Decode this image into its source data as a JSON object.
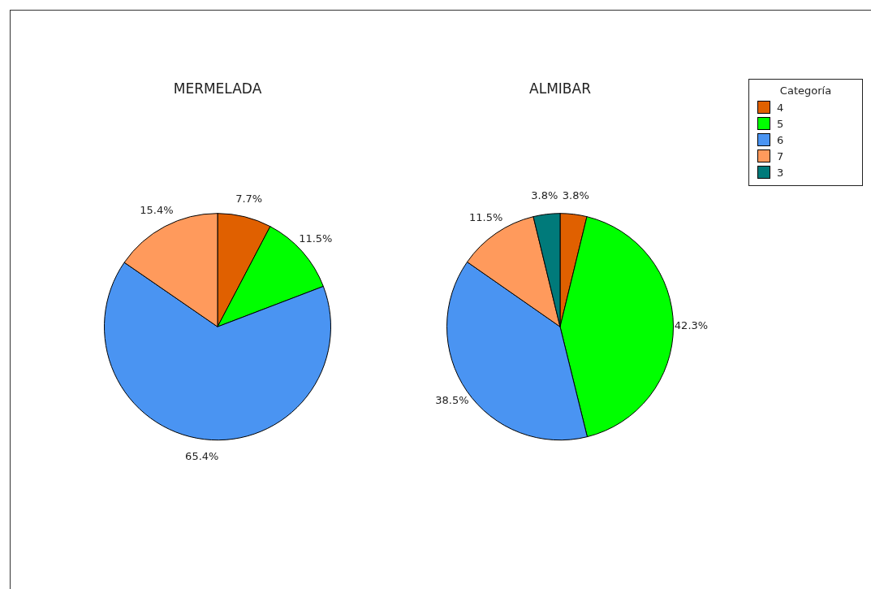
{
  "chart_data": [
    {
      "type": "pie",
      "title": "MERMELADA",
      "categories": [
        null,
        null,
        null,
        null
      ],
      "values": [
        7.7,
        11.5,
        65.4,
        15.4
      ],
      "colors": [
        "#e06000",
        "#00ff00",
        "#4a94f2",
        "#ff9a5c"
      ],
      "value_labels": [
        "7.7%",
        "11.5%",
        "65.4%",
        "15.4%"
      ],
      "legend": false
    },
    {
      "type": "pie",
      "title": "ALMIBAR",
      "categories": [
        "4",
        "5",
        "6",
        "7",
        "3"
      ],
      "values": [
        3.8,
        42.3,
        38.5,
        11.5,
        3.8
      ],
      "colors": [
        "#e06000",
        "#00ff00",
        "#4a94f2",
        "#ff9a5c",
        "#007a7a"
      ],
      "value_labels": [
        "3.8%",
        "42.3%",
        "38.5%",
        "11.5%",
        "3.8%"
      ],
      "legend": "top right",
      "legend_title": "Categoría"
    }
  ]
}
